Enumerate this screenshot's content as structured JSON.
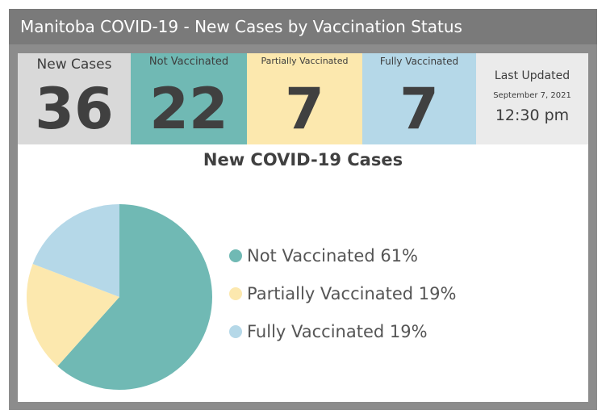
{
  "header": {
    "title": "Manitoba COVID-19 - New Cases by Vaccination Status"
  },
  "tiles": {
    "new_cases": {
      "label": "New Cases",
      "value": "36",
      "color": "#d9d9d9"
    },
    "not_vaccinated": {
      "label": "Not Vaccinated",
      "value": "22",
      "color": "#70b9b4"
    },
    "partially_vaccinated": {
      "label": "Partially Vaccinated",
      "value": "7",
      "color": "#fce8ae"
    },
    "fully_vaccinated": {
      "label": "Fully Vaccinated",
      "value": "7",
      "color": "#b5d8e8"
    },
    "last_updated": {
      "label": "Last Updated",
      "date": "September 7, 2021",
      "time": "12:30 pm",
      "color": "#ebebeb"
    }
  },
  "chart_data": {
    "type": "pie",
    "title": "New COVID-19 Cases",
    "legend_position": "right",
    "slices": [
      {
        "name": "Not Vaccinated",
        "value": 61,
        "label": "Not Vaccinated 61%",
        "color": "#70b9b4"
      },
      {
        "name": "Partially Vaccinated",
        "value": 19,
        "label": "Partially Vaccinated 19%",
        "color": "#fce8ae"
      },
      {
        "name": "Fully Vaccinated",
        "value": 19,
        "label": "Fully Vaccinated 19%",
        "color": "#b5d8e8"
      }
    ]
  }
}
